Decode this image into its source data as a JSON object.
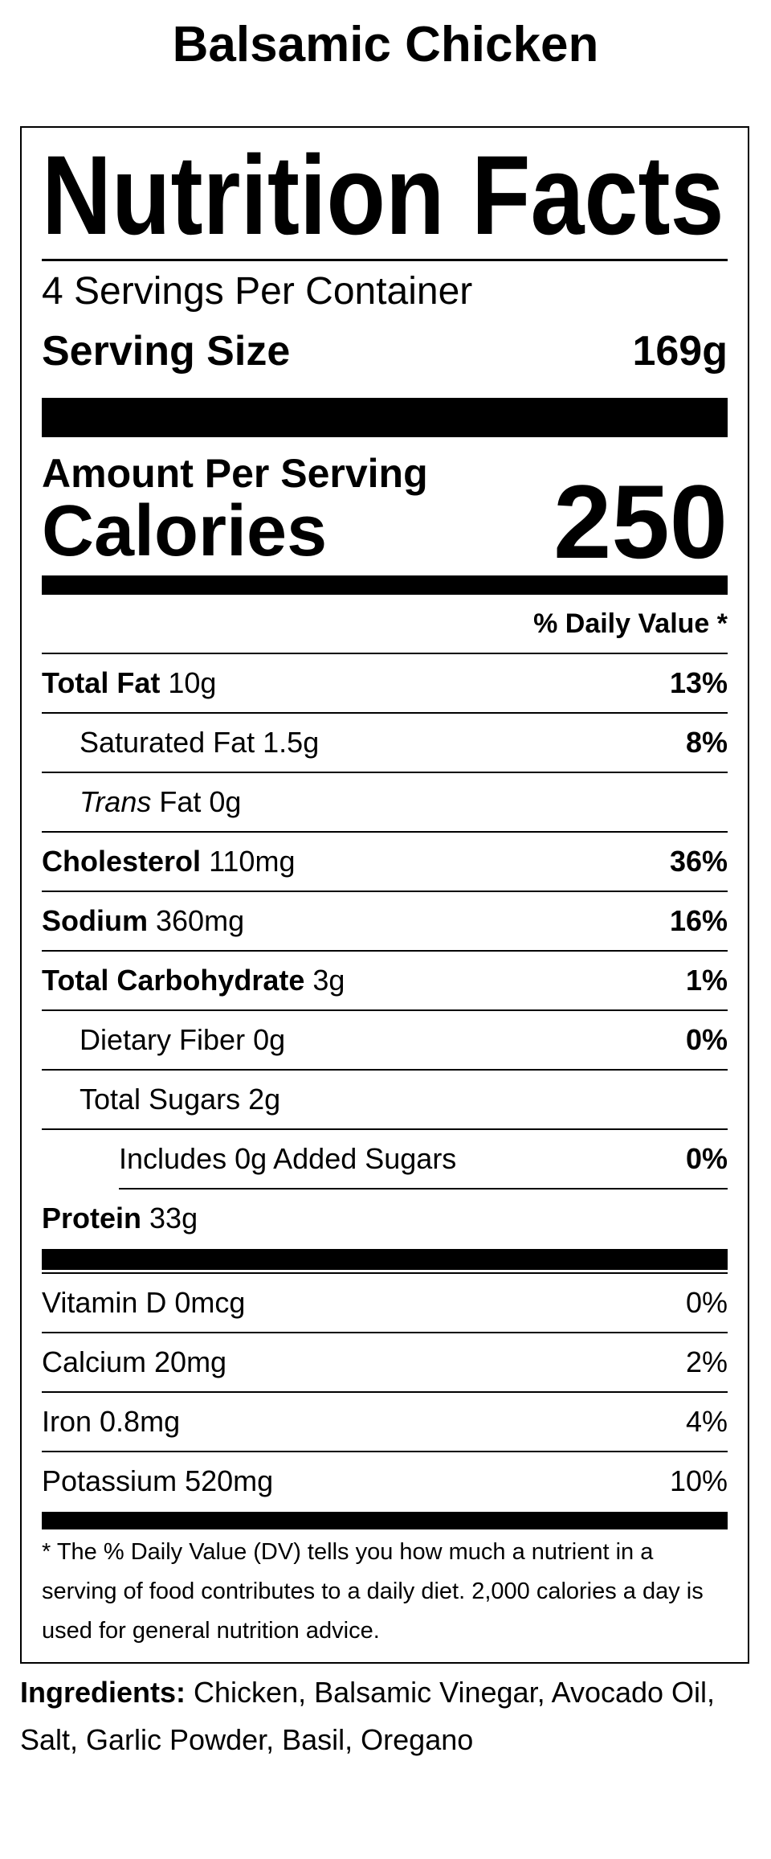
{
  "title": "Balsamic Chicken",
  "label": {
    "heading": "Nutrition Facts",
    "servings_per_container": "4 Servings Per Container",
    "serving_size_label": "Serving Size",
    "serving_size_value": "169g",
    "amount_per_serving": "Amount Per Serving",
    "calories_label": "Calories",
    "calories_value": "250",
    "daily_value_header": "% Daily Value *",
    "nutrients": [
      {
        "name": "Total Fat",
        "amount": "10g",
        "dv": "13%"
      },
      {
        "name": "Saturated Fat",
        "amount": "1.5g",
        "dv": "8%"
      },
      {
        "name": "Trans",
        "name_suffix": "Fat",
        "amount": "0g",
        "dv": ""
      },
      {
        "name": "Cholesterol",
        "amount": "110mg",
        "dv": "36%"
      },
      {
        "name": "Sodium",
        "amount": "360mg",
        "dv": "16%"
      },
      {
        "name": "Total Carbohydrate",
        "amount": "3g",
        "dv": "1%"
      },
      {
        "name": "Dietary Fiber",
        "amount": "0g",
        "dv": "0%"
      },
      {
        "name": "Total Sugars",
        "amount": "2g",
        "dv": ""
      },
      {
        "name": "Includes 0g Added Sugars",
        "amount": "",
        "dv": "0%"
      },
      {
        "name": "Protein",
        "amount": "33g",
        "dv": ""
      }
    ],
    "vitamins": [
      {
        "text": "Vitamin D 0mcg",
        "dv": "0%"
      },
      {
        "text": "Calcium 20mg",
        "dv": "2%"
      },
      {
        "text": "Iron 0.8mg",
        "dv": "4%"
      },
      {
        "text": "Potassium 520mg",
        "dv": "10%"
      }
    ],
    "footnote": "* The % Daily Value (DV) tells you how much a nutrient in a serving of food contributes to a daily diet. 2,000 calories a day is used for general nutrition advice."
  },
  "ingredients": {
    "label": "Ingredients:",
    "text": "Chicken, Balsamic Vinegar, Avocado Oil, Salt, Garlic Powder, Basil, Oregano"
  }
}
